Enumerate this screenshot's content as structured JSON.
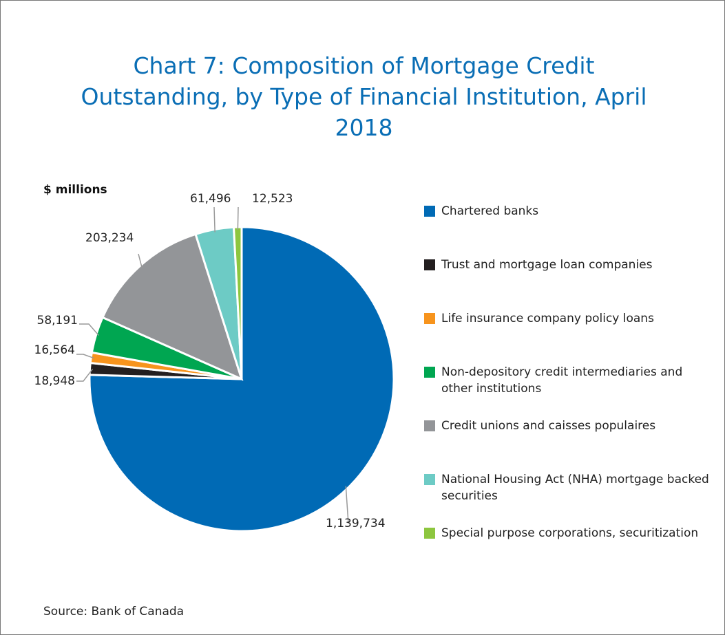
{
  "chart_data": {
    "type": "pie",
    "title": "Chart 7: Composition of Mortgage Credit Outstanding, by Type of Financial Institution, April 2018",
    "unit_label": "$ millions",
    "source": "Source: Bank of Canada",
    "series": [
      {
        "name": "Chartered banks",
        "color": "#006ab5"
      },
      {
        "name": "Trust and mortgage loan companies",
        "color": "#231f20"
      },
      {
        "name": "Life insurance company policy loans",
        "color": "#f7941d"
      },
      {
        "name": "Non-depository credit intermediaries and other institutions",
        "color": "#00a651"
      },
      {
        "name": "Credit unions and caisses populaires",
        "color": "#939598"
      },
      {
        "name": "National Housing Act (NHA) mortgage backed securities",
        "color": "#6dcbc5"
      },
      {
        "name": "Special purpose corporations, securitization",
        "color": "#8dc63f"
      }
    ],
    "values": [
      1139734,
      18948,
      16564,
      58191,
      203234,
      61496,
      12523
    ],
    "value_labels": [
      "1,139,734",
      "18,948",
      "16,564",
      "58,191",
      "203,234",
      "61,496",
      "12,523"
    ]
  }
}
